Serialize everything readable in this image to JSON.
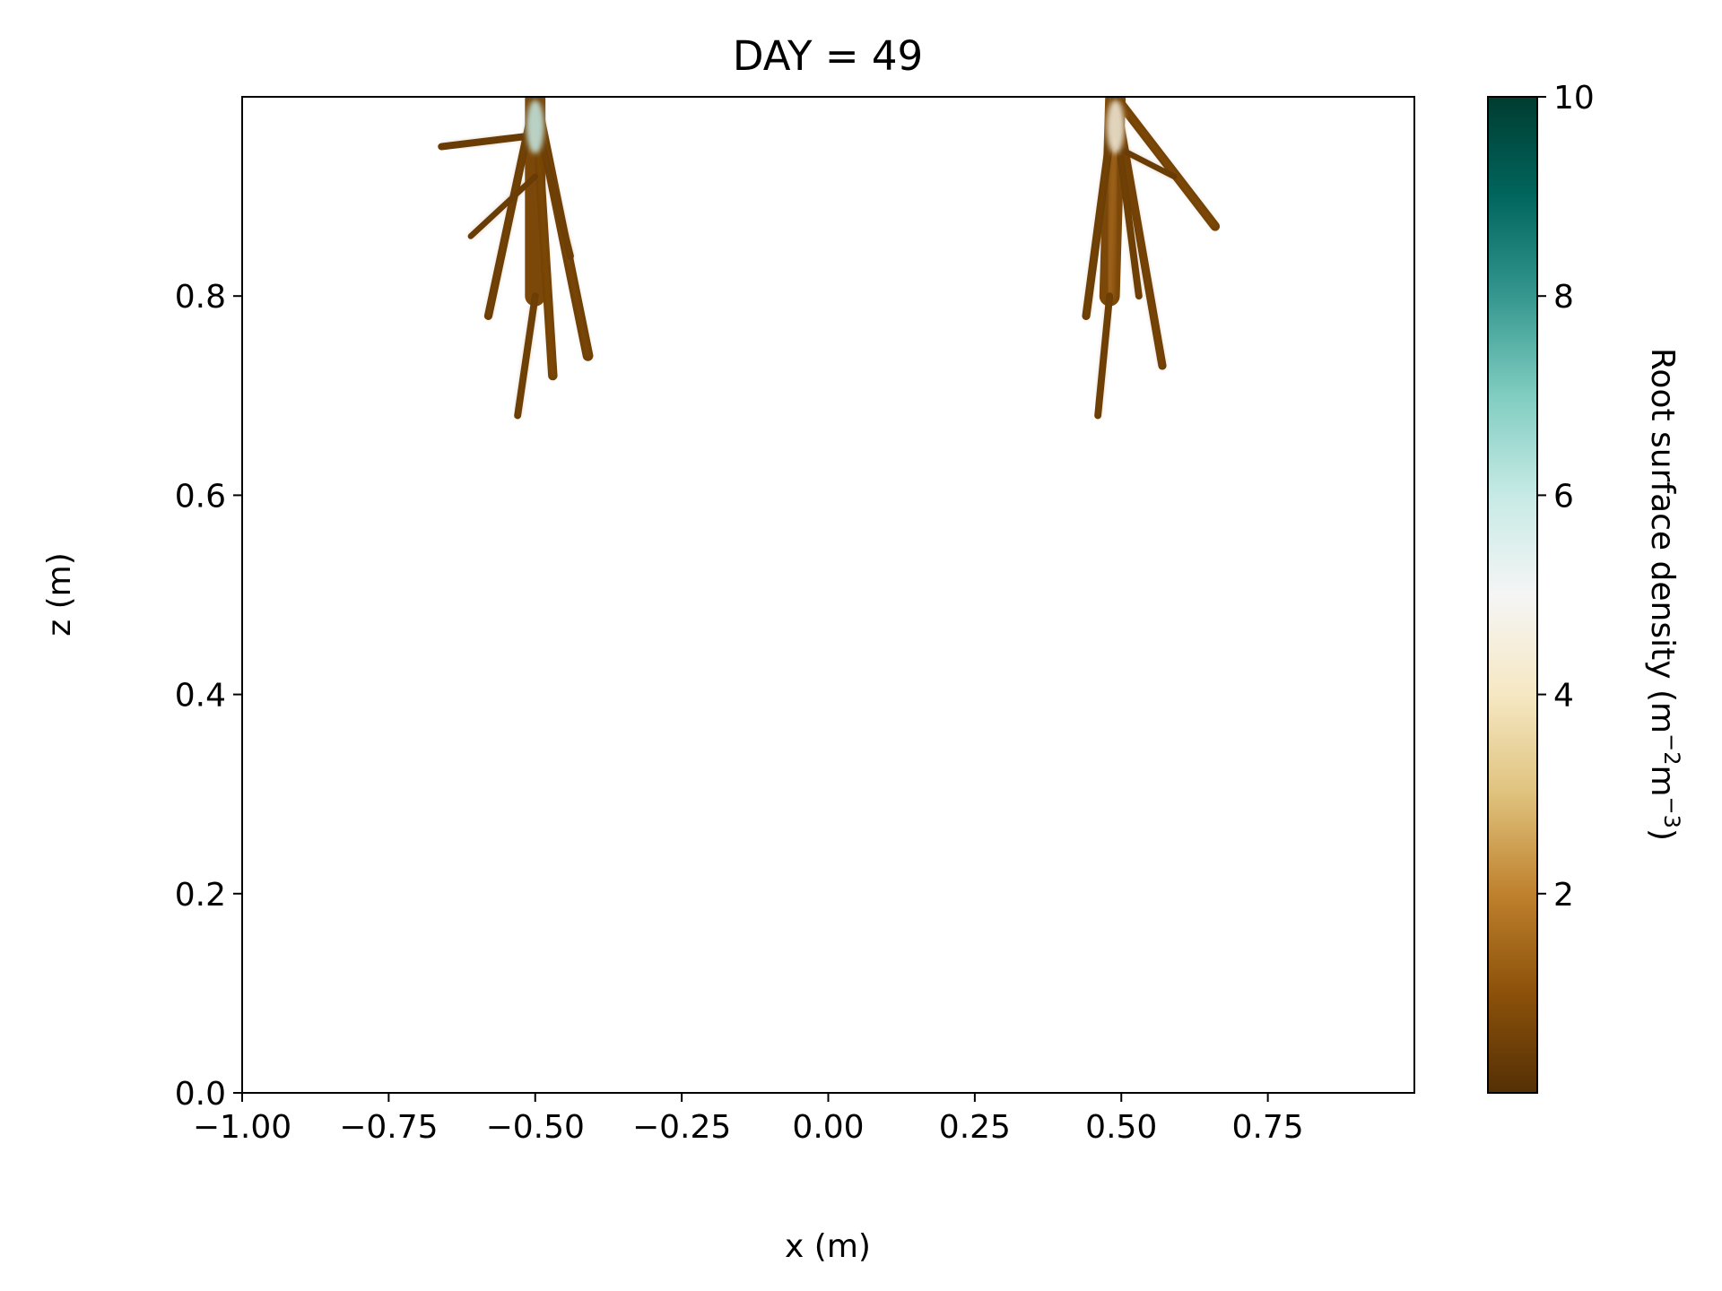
{
  "chart_data": {
    "type": "heatmap",
    "title": "DAY = 49",
    "xlabel": "x (m)",
    "ylabel": "z (m)",
    "xlim": [
      -1.0,
      1.0
    ],
    "ylim": [
      0.0,
      1.0
    ],
    "x_ticks": [
      -1.0,
      -0.75,
      -0.5,
      -0.25,
      0.0,
      0.25,
      0.5,
      0.75
    ],
    "x_tick_labels": [
      "−1.00",
      "−0.75",
      "−0.50",
      "−0.25",
      "0.00",
      "0.25",
      "0.50",
      "0.75"
    ],
    "y_ticks": [
      0.0,
      0.2,
      0.4,
      0.6,
      0.8
    ],
    "y_tick_labels": [
      "0.0",
      "0.2",
      "0.4",
      "0.6",
      "0.8"
    ],
    "grid": false,
    "colormap": "BrBG",
    "colorbar": {
      "label": "Root surface density (m",
      "label_sup1": "−2",
      "label_mid": "m",
      "label_sup2": "−3",
      "label_end": ")",
      "range": [
        0,
        10
      ],
      "ticks": [
        2,
        4,
        6,
        8,
        10
      ],
      "tick_labels": [
        "2",
        "4",
        "6",
        "8",
        "10"
      ],
      "colors": [
        "#543005",
        "#8c510a",
        "#bf812d",
        "#dfc27d",
        "#f6e8c3",
        "#f5f5f5",
        "#c7eae5",
        "#80cdc1",
        "#35978f",
        "#01665e",
        "#003c30"
      ]
    },
    "series": [
      {
        "plant_x": -0.5,
        "roots": [
          {
            "from": [
              -0.5,
              1.0
            ],
            "to": [
              -0.5,
              0.8
            ],
            "w": 0.035,
            "value": 1.2
          },
          {
            "from": [
              -0.5,
              0.8
            ],
            "to": [
              -0.53,
              0.68
            ],
            "w": 0.012,
            "value": 0.6
          },
          {
            "from": [
              -0.5,
              1.0
            ],
            "to": [
              -0.47,
              0.72
            ],
            "w": 0.016,
            "value": 0.8
          },
          {
            "from": [
              -0.5,
              1.0
            ],
            "to": [
              -0.41,
              0.74
            ],
            "w": 0.018,
            "value": 0.7
          },
          {
            "from": [
              -0.5,
              1.0
            ],
            "to": [
              -0.58,
              0.78
            ],
            "w": 0.014,
            "value": 0.6
          },
          {
            "from": [
              -0.52,
              0.96
            ],
            "to": [
              -0.66,
              0.95
            ],
            "w": 0.012,
            "value": 0.5
          },
          {
            "from": [
              -0.5,
              0.92
            ],
            "to": [
              -0.61,
              0.86
            ],
            "w": 0.01,
            "value": 0.5
          },
          {
            "from": [
              -0.5,
              0.98
            ],
            "to": [
              -0.44,
              0.84
            ],
            "w": 0.012,
            "value": 0.6
          }
        ],
        "hotspot": {
          "at": [
            -0.5,
            0.97
          ],
          "value": 6.0
        }
      },
      {
        "plant_x": 0.5,
        "roots": [
          {
            "from": [
              0.49,
              1.0
            ],
            "to": [
              0.48,
              0.8
            ],
            "w": 0.035,
            "value": 1.2
          },
          {
            "from": [
              0.48,
              0.8
            ],
            "to": [
              0.46,
              0.68
            ],
            "w": 0.012,
            "value": 0.6
          },
          {
            "from": [
              0.49,
              1.0
            ],
            "to": [
              0.57,
              0.73
            ],
            "w": 0.014,
            "value": 0.7
          },
          {
            "from": [
              0.49,
              1.0
            ],
            "to": [
              0.66,
              0.87
            ],
            "w": 0.016,
            "value": 0.8
          },
          {
            "from": [
              0.49,
              1.0
            ],
            "to": [
              0.44,
              0.78
            ],
            "w": 0.014,
            "value": 0.6
          },
          {
            "from": [
              0.49,
              0.98
            ],
            "to": [
              0.53,
              0.8
            ],
            "w": 0.012,
            "value": 0.6
          },
          {
            "from": [
              0.49,
              0.95
            ],
            "to": [
              0.59,
              0.92
            ],
            "w": 0.01,
            "value": 0.5
          }
        ],
        "hotspot": {
          "at": [
            0.49,
            0.97
          ],
          "value": 4.5
        }
      }
    ]
  }
}
